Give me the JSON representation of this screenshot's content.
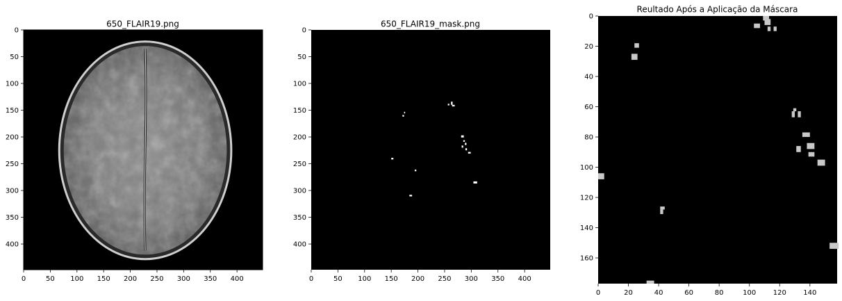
{
  "colors": {
    "background": "#000000",
    "brain_gray": "#8a8a8a",
    "mask_white": "#ffffff",
    "result_gray": "#c8c8c8"
  },
  "chart_data": [
    {
      "type": "heatmap",
      "title": "650_FLAIR19.png",
      "content": "grayscale axial FLAIR MRI brain slice",
      "xlim": [
        0,
        448
      ],
      "ylim": [
        448,
        0
      ],
      "xticks": [
        0,
        50,
        100,
        150,
        200,
        250,
        300,
        350,
        400
      ],
      "yticks": [
        0,
        50,
        100,
        150,
        200,
        250,
        300,
        350,
        400
      ],
      "brain_ellipse": {
        "cx": 228,
        "cy": 225,
        "rx": 158,
        "ry": 200
      },
      "grid": false
    },
    {
      "type": "heatmap",
      "title": "650_FLAIR19_mask.png",
      "xlim": [
        0,
        448
      ],
      "ylim": [
        448,
        0
      ],
      "xticks": [
        0,
        50,
        100,
        150,
        200,
        250,
        300,
        350,
        400
      ],
      "yticks": [
        0,
        50,
        100,
        150,
        200,
        250,
        300,
        350,
        400
      ],
      "spots": [
        {
          "x": 174,
          "y": 153,
          "w": 2,
          "h": 3
        },
        {
          "x": 171,
          "y": 159,
          "w": 3,
          "h": 3
        },
        {
          "x": 256,
          "y": 138,
          "w": 3,
          "h": 3
        },
        {
          "x": 262,
          "y": 134,
          "w": 3,
          "h": 6
        },
        {
          "x": 264,
          "y": 140,
          "w": 5,
          "h": 3
        },
        {
          "x": 281,
          "y": 197,
          "w": 5,
          "h": 4
        },
        {
          "x": 285,
          "y": 206,
          "w": 3,
          "h": 3
        },
        {
          "x": 288,
          "y": 211,
          "w": 3,
          "h": 4
        },
        {
          "x": 282,
          "y": 216,
          "w": 3,
          "h": 4
        },
        {
          "x": 289,
          "y": 221,
          "w": 3,
          "h": 4
        },
        {
          "x": 294,
          "y": 228,
          "w": 5,
          "h": 3
        },
        {
          "x": 150,
          "y": 239,
          "w": 4,
          "h": 3
        },
        {
          "x": 194,
          "y": 261,
          "w": 3,
          "h": 3
        },
        {
          "x": 304,
          "y": 283,
          "w": 7,
          "h": 4
        },
        {
          "x": 184,
          "y": 308,
          "w": 5,
          "h": 3
        }
      ],
      "grid": false
    },
    {
      "type": "heatmap",
      "title": "Reultado Após a Aplicação da Máscara",
      "xlim": [
        0,
        158
      ],
      "ylim": [
        177,
        0
      ],
      "xticks": [
        0,
        20,
        40,
        60,
        80,
        100,
        120,
        140
      ],
      "yticks": [
        0,
        20,
        40,
        60,
        80,
        100,
        120,
        140,
        160
      ],
      "spots": [
        {
          "x": 109,
          "y": 0,
          "w": 4,
          "h": 3
        },
        {
          "x": 110,
          "y": 2,
          "w": 4,
          "h": 4
        },
        {
          "x": 103,
          "y": 5,
          "w": 4,
          "h": 3
        },
        {
          "x": 112,
          "y": 7,
          "w": 2,
          "h": 3
        },
        {
          "x": 116,
          "y": 7,
          "w": 2,
          "h": 3
        },
        {
          "x": 24,
          "y": 18,
          "w": 3,
          "h": 3
        },
        {
          "x": 22,
          "y": 25,
          "w": 4,
          "h": 4
        },
        {
          "x": 129,
          "y": 61,
          "w": 2,
          "h": 2
        },
        {
          "x": 128,
          "y": 63,
          "w": 2,
          "h": 4
        },
        {
          "x": 132,
          "y": 63,
          "w": 2,
          "h": 4
        },
        {
          "x": 135,
          "y": 77,
          "w": 5,
          "h": 3
        },
        {
          "x": 138,
          "y": 84,
          "w": 5,
          "h": 4
        },
        {
          "x": 131,
          "y": 86,
          "w": 3,
          "h": 4
        },
        {
          "x": 139,
          "y": 90,
          "w": 4,
          "h": 3
        },
        {
          "x": 145,
          "y": 95,
          "w": 5,
          "h": 4
        },
        {
          "x": 0,
          "y": 104,
          "w": 4,
          "h": 4
        },
        {
          "x": 41,
          "y": 126,
          "w": 3,
          "h": 2
        },
        {
          "x": 41,
          "y": 128,
          "w": 2,
          "h": 3
        },
        {
          "x": 153,
          "y": 150,
          "w": 6,
          "h": 4
        },
        {
          "x": 32,
          "y": 175,
          "w": 5,
          "h": 2
        }
      ],
      "grid": false
    }
  ]
}
